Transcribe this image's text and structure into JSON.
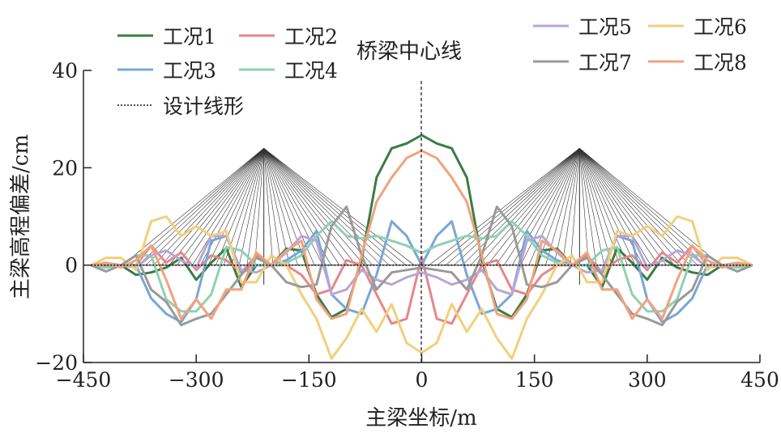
{
  "chart_data": {
    "type": "line",
    "title": "",
    "xlabel": "主梁坐标/m",
    "ylabel": "主梁高程偏差/cm",
    "xlim": [
      -450,
      450
    ],
    "ylim": [
      -20,
      40
    ],
    "xticks": [
      -450,
      -300,
      -150,
      0,
      150,
      300,
      450
    ],
    "xtick_labels": [
      "−450",
      "−300",
      "−150",
      "0",
      "150",
      "300",
      "450"
    ],
    "yticks": [
      -20,
      0,
      20,
      40
    ],
    "ytick_labels": [
      "−20",
      "0",
      "20",
      "40"
    ],
    "grid": false,
    "annotation": "桥梁中心线",
    "symmetric_about_zero": true,
    "x_half": [
      -440,
      -420,
      -400,
      -380,
      -360,
      -340,
      -320,
      -300,
      -280,
      -260,
      -240,
      -220,
      -200,
      -180,
      -160,
      -140,
      -120,
      -100,
      -80,
      -60,
      -40,
      -20,
      0
    ],
    "series": [
      {
        "name": "工况1",
        "color": "#3a7d44",
        "values_half": [
          0,
          0,
          0,
          -2,
          -1.5,
          -0.5,
          1.5,
          -3,
          0.5,
          3.5,
          -4.5,
          0,
          0,
          3.4,
          3,
          -6,
          -10.7,
          -9,
          1,
          18,
          24,
          25,
          26.7
        ]
      },
      {
        "name": "工况2",
        "color": "#e8868a",
        "values_half": [
          0,
          0,
          0,
          0,
          4,
          0.5,
          2.6,
          -1,
          2,
          1,
          -1.5,
          2,
          0,
          0,
          -2,
          -6,
          -5,
          1,
          0,
          -6,
          -12,
          -11,
          1.7
        ]
      },
      {
        "name": "工况3",
        "color": "#7aa6d8",
        "values_half": [
          0,
          -0.5,
          0,
          0,
          -6.8,
          -10,
          -11.7,
          -7,
          5,
          6,
          -1.5,
          0,
          0,
          1,
          3,
          7,
          -6,
          -9,
          -10,
          -2,
          9,
          6,
          0
        ]
      },
      {
        "name": "工况4",
        "color": "#8fd1b0",
        "values_half": [
          0,
          -0.5,
          0,
          2,
          2,
          -7,
          -9.5,
          -9.5,
          -6,
          3.7,
          3,
          0,
          0,
          0.5,
          2,
          6,
          9,
          6,
          5.5,
          6,
          5,
          4,
          2.5
        ]
      },
      {
        "name": "工况5",
        "color": "#b8a6d6",
        "values_half": [
          0,
          0.5,
          0,
          -0.5,
          2,
          3,
          1,
          -0.5,
          6,
          6,
          -1,
          -1.5,
          0,
          2.6,
          6,
          5,
          -6,
          -5,
          -1,
          -3,
          -4,
          -2.5,
          -1.5
        ]
      },
      {
        "name": "工况6",
        "color": "#f3cf7a",
        "values_half": [
          0,
          1.5,
          1.5,
          -1,
          9,
          10,
          6,
          8,
          6,
          7,
          -3.5,
          -3.5,
          2,
          0,
          -6,
          -11,
          -19.2,
          -15,
          -9,
          -13.7,
          -8,
          -16,
          -18
        ]
      },
      {
        "name": "工况7",
        "color": "#9a9a9a",
        "values_half": [
          0,
          -1.3,
          0,
          2,
          -5,
          -7.5,
          -12.3,
          -11,
          -10,
          -6,
          -2,
          1.5,
          0,
          -3.5,
          -4.5,
          -4,
          8,
          12,
          2,
          -5,
          -1.5,
          -1,
          -0.5
        ]
      },
      {
        "name": "工况8",
        "color": "#f2a27e",
        "values_half": [
          0,
          0.5,
          -0.5,
          1,
          4,
          -3,
          -11,
          -7,
          -11,
          -5,
          -5,
          2.6,
          0,
          3,
          5,
          -7,
          -11,
          -10,
          2,
          13,
          18,
          22,
          23.5
        ]
      },
      {
        "name": "设计线形",
        "color": "#111111",
        "style": "dotted",
        "values_half": [
          0,
          0,
          0,
          0,
          0,
          0,
          0,
          0,
          0,
          0,
          0,
          0,
          0,
          0,
          0,
          0,
          0,
          0,
          0,
          0,
          0,
          0,
          0
        ]
      }
    ],
    "bridge": {
      "pylon_x": [
        -210,
        210
      ],
      "pylon_top": 24,
      "pylon_bottom": -4,
      "cable_count_per_side": 18,
      "cable_deck_range": [
        -398,
        -10
      ]
    },
    "legend": {
      "placement": "top"
    }
  }
}
